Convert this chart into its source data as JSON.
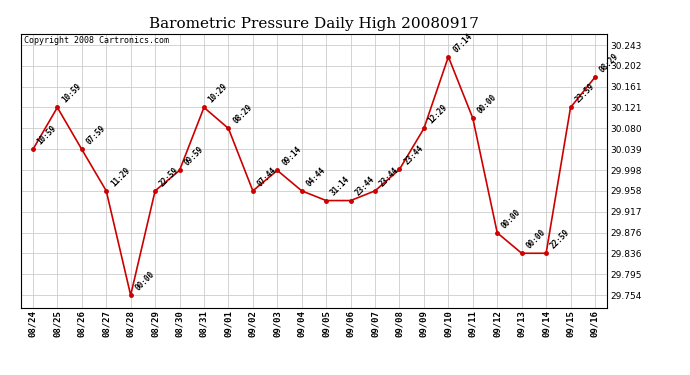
{
  "title": "Barometric Pressure Daily High 20080917",
  "copyright": "Copyright 2008 Cartronics.com",
  "background_color": "#ffffff",
  "plot_bg_color": "#ffffff",
  "grid_color": "#cccccc",
  "line_color": "#cc0000",
  "marker_color": "#cc0000",
  "data_points": [
    {
      "date": "08/24",
      "value": 30.039,
      "label": "10:59"
    },
    {
      "date": "08/25",
      "value": 30.121,
      "label": "10:59"
    },
    {
      "date": "08/26",
      "value": 30.039,
      "label": "07:59"
    },
    {
      "date": "08/27",
      "value": 29.958,
      "label": "11:29"
    },
    {
      "date": "08/28",
      "value": 29.754,
      "label": "00:00"
    },
    {
      "date": "08/29",
      "value": 29.958,
      "label": "22:59"
    },
    {
      "date": "08/30",
      "value": 29.998,
      "label": "09:59"
    },
    {
      "date": "08/31",
      "value": 30.121,
      "label": "10:29"
    },
    {
      "date": "09/01",
      "value": 30.08,
      "label": "08:29"
    },
    {
      "date": "09/02",
      "value": 29.958,
      "label": "07:44"
    },
    {
      "date": "09/03",
      "value": 29.998,
      "label": "09:14"
    },
    {
      "date": "09/04",
      "value": 29.958,
      "label": "04:44"
    },
    {
      "date": "09/05",
      "value": 29.939,
      "label": "31:14"
    },
    {
      "date": "09/06",
      "value": 29.939,
      "label": "23:44"
    },
    {
      "date": "09/07",
      "value": 29.958,
      "label": "23:44"
    },
    {
      "date": "09/08",
      "value": 30.0,
      "label": "23:44"
    },
    {
      "date": "09/09",
      "value": 30.08,
      "label": "12:29"
    },
    {
      "date": "09/10",
      "value": 30.22,
      "label": "07:14"
    },
    {
      "date": "09/11",
      "value": 30.1,
      "label": "00:00"
    },
    {
      "date": "09/12",
      "value": 29.876,
      "label": "00:00"
    },
    {
      "date": "09/13",
      "value": 29.836,
      "label": "00:00"
    },
    {
      "date": "09/14",
      "value": 29.836,
      "label": "22:59"
    },
    {
      "date": "09/15",
      "value": 30.121,
      "label": "23:59"
    },
    {
      "date": "09/16",
      "value": 30.18,
      "label": "08:29"
    }
  ],
  "yticks": [
    29.754,
    29.795,
    29.836,
    29.876,
    29.917,
    29.958,
    29.998,
    30.039,
    30.08,
    30.121,
    30.161,
    30.202,
    30.243
  ],
  "ylim_min": 29.73,
  "ylim_max": 30.265,
  "title_fontsize": 11,
  "label_fontsize": 5.5,
  "tick_fontsize": 6.5,
  "copyright_fontsize": 6
}
